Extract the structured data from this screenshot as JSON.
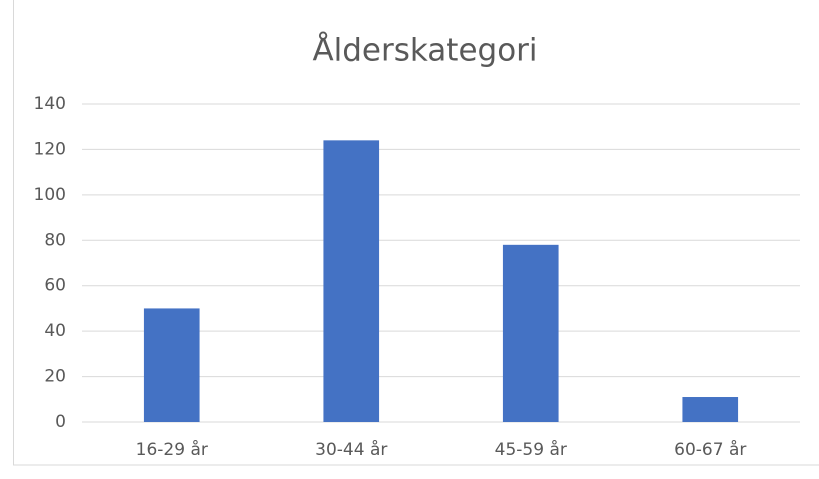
{
  "chart_data": {
    "type": "bar",
    "title": "Ålderskategori",
    "categories": [
      "16-29 år",
      "30-44 år",
      "45-59 år",
      "60-67 år"
    ],
    "values": [
      50,
      124,
      78,
      11
    ],
    "color": "#4472c4",
    "ylim": [
      0,
      140
    ],
    "yticks": [
      0,
      20,
      40,
      60,
      80,
      100,
      120,
      140
    ],
    "grid": true
  }
}
